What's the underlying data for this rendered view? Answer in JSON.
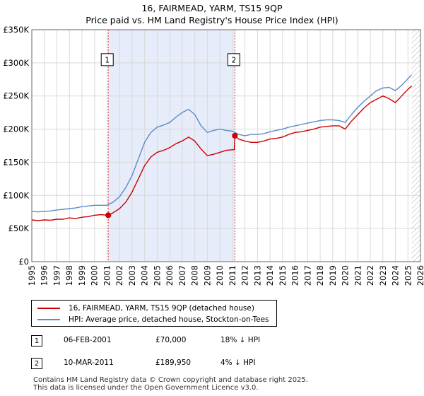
{
  "title_line1": "16, FAIRMEAD, YARM, TS15 9QP",
  "title_line2": "Price paid vs. HM Land Registry's House Price Index (HPI)",
  "legend": {
    "series1": "16, FAIRMEAD, YARM, TS15 9QP (detached house)",
    "series2": "HPI: Average price, detached house, Stockton-on-Tees"
  },
  "transactions": [
    {
      "num": "1",
      "date": "06-FEB-2001",
      "price": "£70,000",
      "hpi": "18% ↓ HPI"
    },
    {
      "num": "2",
      "date": "10-MAR-2011",
      "price": "£189,950",
      "hpi": "4% ↓ HPI"
    }
  ],
  "footer_line1": "Contains HM Land Registry data © Crown copyright and database right 2025.",
  "footer_line2": "This data is licensed under the Open Government Licence v3.0.",
  "chart_data": {
    "type": "line",
    "xlim": [
      1995,
      2026
    ],
    "ylim": [
      0,
      350000
    ],
    "x_ticks": [
      1995,
      1996,
      1997,
      1998,
      1999,
      2000,
      2001,
      2002,
      2003,
      2004,
      2005,
      2006,
      2007,
      2008,
      2009,
      2010,
      2011,
      2012,
      2013,
      2014,
      2015,
      2016,
      2017,
      2018,
      2019,
      2020,
      2021,
      2022,
      2023,
      2024,
      2025,
      2026
    ],
    "y_ticks": [
      0,
      50000,
      100000,
      150000,
      200000,
      250000,
      300000,
      350000
    ],
    "y_tick_labels": [
      "£0",
      "£50K",
      "£100K",
      "£150K",
      "£200K",
      "£250K",
      "£300K",
      "£350K"
    ],
    "grid": true,
    "shaded_span": [
      2001.1,
      2011.2
    ],
    "future_hatch_from": 2025.3,
    "series": [
      {
        "name": "16, FAIRMEAD, YARM, TS15 9QP (detached house)",
        "color": "#cc0000",
        "x": [
          1995,
          1995.5,
          1996,
          1996.5,
          1997,
          1997.5,
          1998,
          1998.5,
          1999,
          1999.5,
          2000,
          2000.5,
          2001.1,
          2001.5,
          2002,
          2002.5,
          2003,
          2003.5,
          2004,
          2004.5,
          2005,
          2005.5,
          2006,
          2006.5,
          2007,
          2007.5,
          2008,
          2008.5,
          2009,
          2009.5,
          2010,
          2010.5,
          2011.15,
          2011.2,
          2011.5,
          2012,
          2012.5,
          2013,
          2013.5,
          2014,
          2014.5,
          2015,
          2015.5,
          2016,
          2016.5,
          2017,
          2017.5,
          2018,
          2018.5,
          2019,
          2019.5,
          2020,
          2020.5,
          2021,
          2021.5,
          2022,
          2022.5,
          2023,
          2023.5,
          2024,
          2024.5,
          2025,
          2025.3
        ],
        "y": [
          63000,
          62000,
          63000,
          62500,
          64000,
          64000,
          66000,
          65000,
          67000,
          68000,
          70000,
          71000,
          70000,
          74000,
          80000,
          90000,
          105000,
          125000,
          145000,
          158000,
          165000,
          168000,
          172000,
          178000,
          182000,
          188000,
          182000,
          170000,
          160000,
          162000,
          165000,
          168000,
          169000,
          189950,
          185000,
          182000,
          180000,
          180000,
          182000,
          185000,
          186000,
          188000,
          192000,
          195000,
          196000,
          198000,
          200000,
          203000,
          204000,
          205000,
          205000,
          200000,
          212000,
          222000,
          232000,
          240000,
          245000,
          250000,
          246000,
          240000,
          250000,
          260000,
          265000
        ]
      },
      {
        "name": "HPI: Average price, detached house, Stockton-on-Tees",
        "color": "#5b8cc8",
        "x": [
          1995,
          1995.5,
          1996,
          1996.5,
          1997,
          1997.5,
          1998,
          1998.5,
          1999,
          1999.5,
          2000,
          2000.5,
          2001,
          2001.5,
          2002,
          2002.5,
          2003,
          2003.5,
          2004,
          2004.5,
          2005,
          2005.5,
          2006,
          2006.5,
          2007,
          2007.5,
          2008,
          2008.5,
          2009,
          2009.5,
          2010,
          2010.5,
          2011,
          2011.5,
          2012,
          2012.5,
          2013,
          2013.5,
          2014,
          2014.5,
          2015,
          2015.5,
          2016,
          2016.5,
          2017,
          2017.5,
          2018,
          2018.5,
          2019,
          2019.5,
          2020,
          2020.5,
          2021,
          2021.5,
          2022,
          2022.5,
          2023,
          2023.5,
          2024,
          2024.5,
          2025,
          2025.3
        ],
        "y": [
          76000,
          75000,
          76000,
          76500,
          78000,
          79000,
          80000,
          81000,
          83000,
          84000,
          85000,
          85000,
          85000,
          90000,
          98000,
          112000,
          130000,
          155000,
          180000,
          195000,
          203000,
          206000,
          210000,
          218000,
          225000,
          230000,
          222000,
          205000,
          195000,
          198000,
          200000,
          198000,
          197000,
          192000,
          190000,
          192000,
          192000,
          193000,
          196000,
          198000,
          200000,
          203000,
          205000,
          207000,
          209000,
          211000,
          213000,
          214000,
          214000,
          213000,
          210000,
          222000,
          233000,
          242000,
          250000,
          258000,
          262000,
          263000,
          258000,
          266000,
          276000,
          282000
        ]
      }
    ],
    "sales": [
      {
        "label": "1",
        "x": 2001.1,
        "y": 70000
      },
      {
        "label": "2",
        "x": 2011.2,
        "y": 189950
      }
    ]
  }
}
